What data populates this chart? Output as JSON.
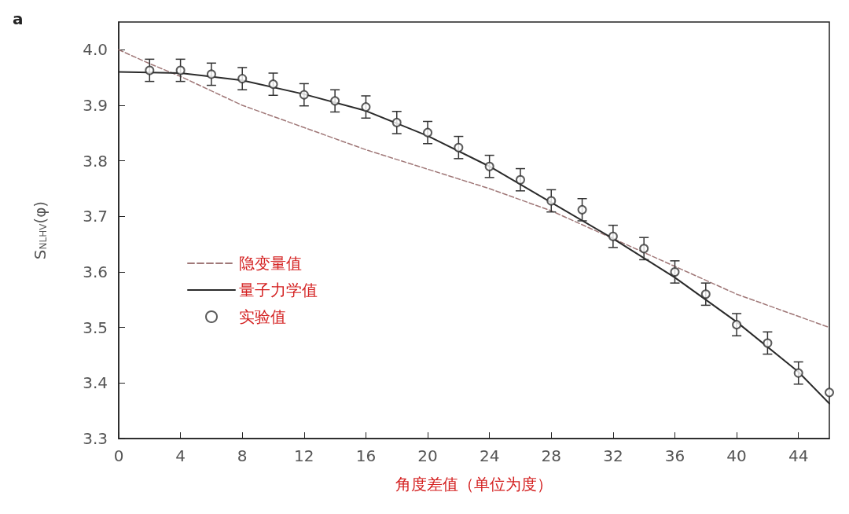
{
  "chart_data": {
    "type": "line",
    "xlabel": "角度差值（单位为度）",
    "ylabel": "S$_{NLHV}$(φ)",
    "annotations": [
      "a"
    ],
    "xlim": [
      0,
      46
    ],
    "xticks": [
      0,
      4,
      8,
      12,
      16,
      20,
      24,
      28,
      32,
      36,
      40,
      44
    ],
    "ylim": [
      3.3,
      4.05
    ],
    "yticks": [
      3.3,
      3.4,
      3.5,
      3.6,
      3.7,
      3.8,
      3.9,
      {
        "value": 4.0,
        "label": "4.0"
      }
    ],
    "grid": false,
    "legend": "left",
    "series": [
      {
        "name": "隐变量值",
        "line_style": "dashed",
        "marker": "none",
        "color": "#a07878",
        "x": [
          0,
          2,
          4,
          8,
          12,
          16,
          20,
          24,
          28,
          32,
          36,
          40,
          44,
          46
        ],
        "values": [
          4.0,
          3.975,
          3.952,
          3.9,
          3.86,
          3.82,
          3.785,
          3.75,
          3.71,
          3.66,
          3.61,
          3.56,
          3.52,
          3.5
        ]
      },
      {
        "name": "量子力学值",
        "line_style": "solid",
        "marker": "none",
        "color": "#2a2a2a",
        "x": [
          0,
          4,
          8,
          12,
          16,
          20,
          24,
          28,
          32,
          36,
          40,
          44,
          46
        ],
        "values": [
          3.96,
          3.958,
          3.945,
          3.92,
          3.89,
          3.845,
          3.79,
          3.725,
          3.66,
          3.59,
          3.51,
          3.42,
          3.363
        ]
      },
      {
        "name": "实验值",
        "type": "scatter",
        "marker": "circle",
        "color": "#333333",
        "x": [
          2,
          4,
          6,
          8,
          10,
          12,
          14,
          16,
          18,
          20,
          22,
          24,
          26,
          28,
          30,
          32,
          34,
          36,
          38,
          40,
          42,
          44,
          46
        ],
        "values": [
          3.963,
          3.963,
          3.956,
          3.948,
          3.938,
          3.919,
          3.908,
          3.897,
          3.869,
          3.851,
          3.824,
          3.79,
          3.766,
          3.728,
          3.712,
          3.664,
          3.642,
          3.6,
          3.56,
          3.505,
          3.472,
          3.418,
          3.383
        ],
        "errors": [
          0.02,
          0.02,
          0.02,
          0.02,
          0.02,
          0.02,
          0.02,
          0.02,
          0.02,
          0.02,
          0.02,
          0.02,
          0.02,
          0.02,
          0.02,
          0.02,
          0.02,
          0.02,
          0.02,
          0.02,
          0.02,
          0.02,
          null
        ]
      }
    ]
  }
}
